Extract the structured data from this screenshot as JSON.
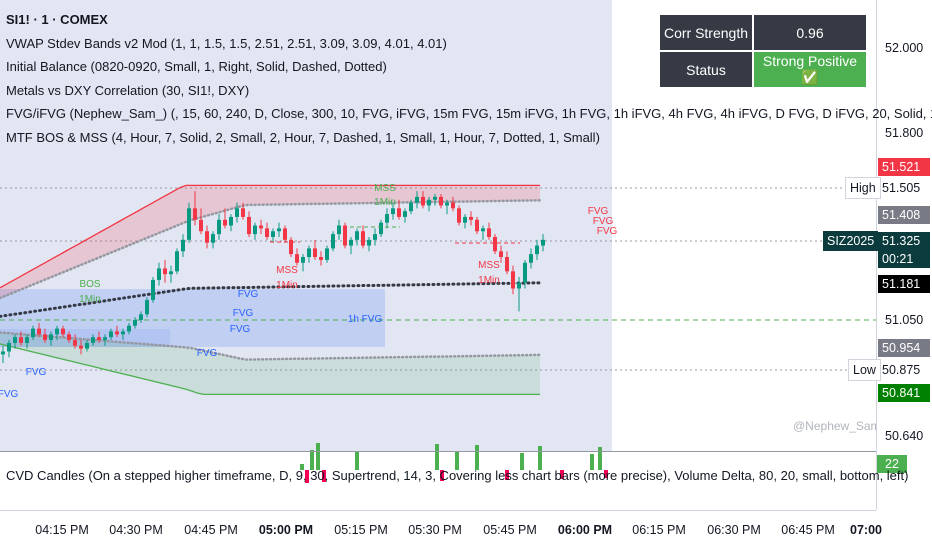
{
  "legend": {
    "symbol": "SI1! · 1 · COMEX",
    "indicators": [
      "VWAP Stdev Bands v2 Mod (1, 1, 1.5, 1.5, 2.51, 2.51, 3.09, 3.09, 4.01, 4.01)",
      "Initial Balance (0820-0920, Small, 1, Right, Solid, Dashed, Dotted)",
      "Metals vs DXY Correlation (30, SI1!, DXY)",
      "FVG/iFVG (Nephew_Sam_) (, 15, 60, 240, D, Close, 300, 10, FVG, iFVG, 15m FVG, 15m iFVG, 1h FVG, 1h iFVG, 4h FVG, 4h iFVG, D FVG, D iFVG, 20, Solid, 1)",
      "MTF BOS & MSS (4, Hour, 7, Solid, 2, Small, 2, Hour, 7, Dashed, 1, Small, 1, Hour, 7, Dotted, 1, Small)"
    ]
  },
  "corr_table": {
    "rows": [
      {
        "key": "Corr Strength",
        "value": "0.96"
      },
      {
        "key": "Status",
        "value": "Strong Positive ✅"
      }
    ]
  },
  "price_axis": {
    "ticks": [
      "52.000",
      "51.800",
      "51.050",
      "50.640"
    ],
    "tags": [
      {
        "label": "51.521",
        "color": "#f23645"
      },
      {
        "label": "51.505",
        "color": "#ffffff"
      },
      {
        "label": "51.408",
        "color": "#787b86"
      },
      {
        "label": "51.181",
        "color": "#000000"
      },
      {
        "label": "50.954",
        "color": "#787b86"
      },
      {
        "label": "50.875",
        "color": "#ffffff"
      },
      {
        "label": "50.841",
        "color": "#008000"
      }
    ],
    "last": {
      "price": "51.325",
      "countdown": "00:21",
      "symbol": "SIZ2025"
    },
    "high_label": "High",
    "low_label": "Low"
  },
  "time_axis": {
    "labels": [
      {
        "text": "04:15 PM",
        "bold": false
      },
      {
        "text": "04:30 PM",
        "bold": false
      },
      {
        "text": "04:45 PM",
        "bold": false
      },
      {
        "text": "05:00 PM",
        "bold": true
      },
      {
        "text": "05:15 PM",
        "bold": false
      },
      {
        "text": "05:30 PM",
        "bold": false
      },
      {
        "text": "05:45 PM",
        "bold": false
      },
      {
        "text": "06:00 PM",
        "bold": true
      },
      {
        "text": "06:15 PM",
        "bold": false
      },
      {
        "text": "06:30 PM",
        "bold": false
      },
      {
        "text": "06:45 PM",
        "bold": false
      },
      {
        "text": "07:00",
        "bold": true
      }
    ]
  },
  "cvd": {
    "legend": "CVD Candles (On a stepped higher timeframe, D, 9, 30, Supertrend, 14, 3, Covering less chart bars (more precise), Volume Delta, 80, 20, small, bottom, left)",
    "value": "22"
  },
  "watermark": "@Nephew_Sam_",
  "colors": {
    "up": "#089981",
    "down": "#f23645",
    "vwap": "#363a45",
    "band_red": "#f23645",
    "band_green": "#4caf50",
    "fvg": "#2962ff"
  },
  "annotations": {
    "bos": "BOS",
    "bos_tf": "1Min",
    "mss": "MSS",
    "mss_tf": "1Min",
    "fvg": "FVG",
    "fvg_1h": "1h FVG"
  },
  "chart_data": {
    "type": "candlestick",
    "symbol": "SI1!",
    "timeframe": "1",
    "x_start": "04:09 PM",
    "x_interval_minutes": 1,
    "ylim": [
      50.62,
      52.06
    ],
    "ohlc": [
      [
        50.93,
        50.96,
        50.9,
        50.94
      ],
      [
        50.94,
        50.98,
        50.92,
        50.97
      ],
      [
        50.97,
        51.0,
        50.95,
        50.99
      ],
      [
        50.99,
        51.01,
        50.96,
        50.97
      ],
      [
        50.97,
        51.0,
        50.95,
        50.99
      ],
      [
        50.99,
        51.03,
        50.98,
        51.02
      ],
      [
        51.02,
        51.04,
        50.99,
        51.0
      ],
      [
        51.0,
        51.02,
        50.97,
        50.98
      ],
      [
        50.98,
        51.01,
        50.96,
        51.0
      ],
      [
        51.0,
        51.03,
        50.98,
        51.02
      ],
      [
        51.02,
        51.03,
        50.99,
        51.0
      ],
      [
        51.0,
        51.01,
        50.97,
        50.98
      ],
      [
        50.98,
        51.0,
        50.95,
        50.96
      ],
      [
        50.96,
        50.98,
        50.93,
        50.95
      ],
      [
        50.95,
        50.98,
        50.94,
        50.97
      ],
      [
        50.97,
        51.0,
        50.96,
        50.99
      ],
      [
        50.99,
        51.01,
        50.97,
        50.98
      ],
      [
        50.98,
        51.0,
        50.96,
        50.99
      ],
      [
        50.99,
        51.02,
        50.98,
        51.01
      ],
      [
        51.01,
        51.03,
        50.99,
        51.0
      ],
      [
        51.0,
        51.02,
        50.98,
        51.01
      ],
      [
        51.01,
        51.04,
        51.0,
        51.03
      ],
      [
        51.03,
        51.06,
        51.02,
        51.05
      ],
      [
        51.05,
        51.08,
        51.04,
        51.07
      ],
      [
        51.07,
        51.13,
        51.06,
        51.12
      ],
      [
        51.12,
        51.2,
        51.11,
        51.19
      ],
      [
        51.19,
        51.25,
        51.17,
        51.23
      ],
      [
        51.23,
        51.26,
        51.18,
        51.21
      ],
      [
        51.21,
        51.24,
        51.18,
        51.22
      ],
      [
        51.22,
        51.3,
        51.21,
        51.29
      ],
      [
        51.29,
        51.35,
        51.27,
        51.33
      ],
      [
        51.33,
        51.46,
        51.32,
        51.44
      ],
      [
        51.44,
        51.5,
        51.38,
        51.4
      ],
      [
        51.4,
        51.44,
        51.35,
        51.36
      ],
      [
        51.36,
        51.38,
        51.3,
        51.32
      ],
      [
        51.32,
        51.36,
        51.3,
        51.35
      ],
      [
        51.35,
        51.42,
        51.33,
        51.4
      ],
      [
        51.4,
        51.44,
        51.37,
        51.38
      ],
      [
        51.38,
        51.42,
        51.36,
        51.41
      ],
      [
        51.41,
        51.46,
        51.39,
        51.44
      ],
      [
        51.44,
        51.46,
        51.4,
        51.41
      ],
      [
        51.41,
        51.43,
        51.34,
        51.35
      ],
      [
        51.35,
        51.39,
        51.33,
        51.38
      ],
      [
        51.38,
        51.4,
        51.35,
        51.37
      ],
      [
        51.37,
        51.39,
        51.33,
        51.34
      ],
      [
        51.34,
        51.37,
        51.32,
        51.36
      ],
      [
        51.36,
        51.39,
        51.34,
        51.37
      ],
      [
        51.37,
        51.38,
        51.32,
        51.33
      ],
      [
        51.33,
        51.34,
        51.27,
        51.28
      ],
      [
        51.28,
        51.3,
        51.24,
        51.25
      ],
      [
        51.25,
        51.28,
        51.22,
        51.27
      ],
      [
        51.27,
        51.31,
        51.25,
        51.3
      ],
      [
        51.3,
        51.33,
        51.26,
        51.27
      ],
      [
        51.27,
        51.29,
        51.24,
        51.26
      ],
      [
        51.26,
        51.31,
        51.25,
        51.3
      ],
      [
        51.3,
        51.36,
        51.29,
        51.35
      ],
      [
        51.35,
        51.4,
        51.33,
        51.38
      ],
      [
        51.38,
        51.39,
        51.3,
        51.31
      ],
      [
        51.31,
        51.34,
        51.28,
        51.33
      ],
      [
        51.33,
        51.37,
        51.31,
        51.36
      ],
      [
        51.36,
        51.38,
        51.3,
        51.31
      ],
      [
        51.31,
        51.34,
        51.29,
        51.33
      ],
      [
        51.33,
        51.37,
        51.31,
        51.35
      ],
      [
        51.35,
        51.4,
        51.34,
        51.39
      ],
      [
        51.39,
        51.44,
        51.37,
        51.42
      ],
      [
        51.42,
        51.46,
        51.4,
        51.44
      ],
      [
        51.44,
        51.47,
        51.4,
        51.41
      ],
      [
        51.41,
        51.44,
        51.39,
        51.43
      ],
      [
        51.43,
        51.47,
        51.42,
        51.46
      ],
      [
        51.46,
        51.5,
        51.44,
        51.48
      ],
      [
        51.48,
        51.5,
        51.44,
        51.45
      ],
      [
        51.45,
        51.48,
        51.43,
        51.47
      ],
      [
        51.47,
        51.49,
        51.45,
        51.48
      ],
      [
        51.48,
        51.49,
        51.44,
        51.45
      ],
      [
        51.45,
        51.47,
        51.42,
        51.46
      ],
      [
        51.46,
        51.48,
        51.43,
        51.44
      ],
      [
        51.44,
        51.45,
        51.38,
        51.39
      ],
      [
        51.39,
        51.42,
        51.37,
        51.41
      ],
      [
        51.41,
        51.43,
        51.38,
        51.4
      ],
      [
        51.4,
        51.41,
        51.35,
        51.36
      ],
      [
        51.36,
        51.38,
        51.33,
        51.37
      ],
      [
        51.37,
        51.39,
        51.33,
        51.34
      ],
      [
        51.34,
        51.35,
        51.28,
        51.29
      ],
      [
        51.29,
        51.31,
        51.25,
        51.27
      ],
      [
        51.27,
        51.29,
        51.21,
        51.22
      ],
      [
        51.22,
        51.24,
        51.14,
        51.16
      ],
      [
        51.16,
        51.2,
        51.08,
        51.18
      ],
      [
        51.18,
        51.26,
        51.16,
        51.25
      ],
      [
        51.25,
        51.3,
        51.23,
        51.28
      ],
      [
        51.28,
        51.33,
        51.26,
        51.31
      ],
      [
        51.31,
        51.35,
        51.29,
        51.33
      ]
    ],
    "vwap_start": 51.15,
    "vwap_end": 51.18,
    "bands_range": [
      50.79,
      51.52
    ]
  }
}
